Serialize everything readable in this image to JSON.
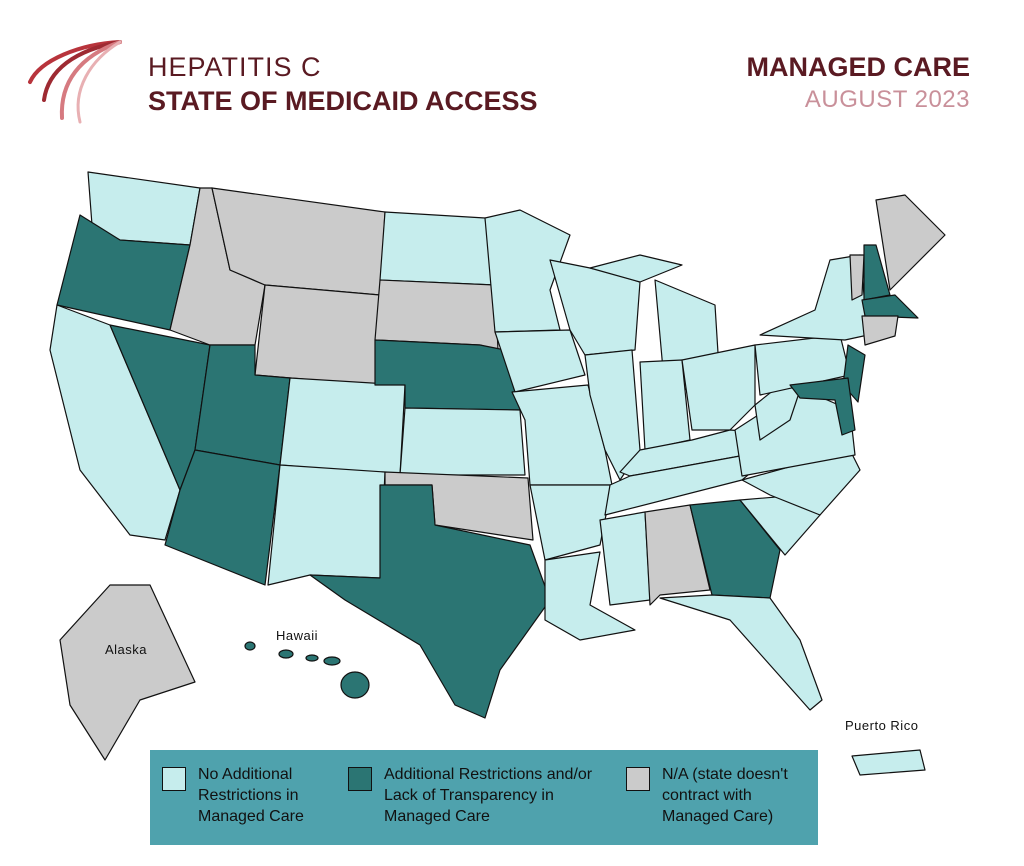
{
  "header": {
    "title_line1": "HEPATITIS C",
    "title_line2": "STATE OF MEDICAID ACCESS",
    "section": "MANAGED CARE",
    "date": "AUGUST 2023"
  },
  "map": {
    "labels": [
      "Alaska",
      "Hawaii",
      "Puerto Rico"
    ]
  },
  "legend": [
    {
      "label": "No Additional Restrictions in Managed Care",
      "color": "#c6eded"
    },
    {
      "label": "Additional Restrictions and/or Lack of Transparency in Managed Care",
      "color": "#2b7573"
    },
    {
      "label": "N/A (state doesn't contract with Managed Care)",
      "color": "#cbcbcb"
    }
  ]
}
